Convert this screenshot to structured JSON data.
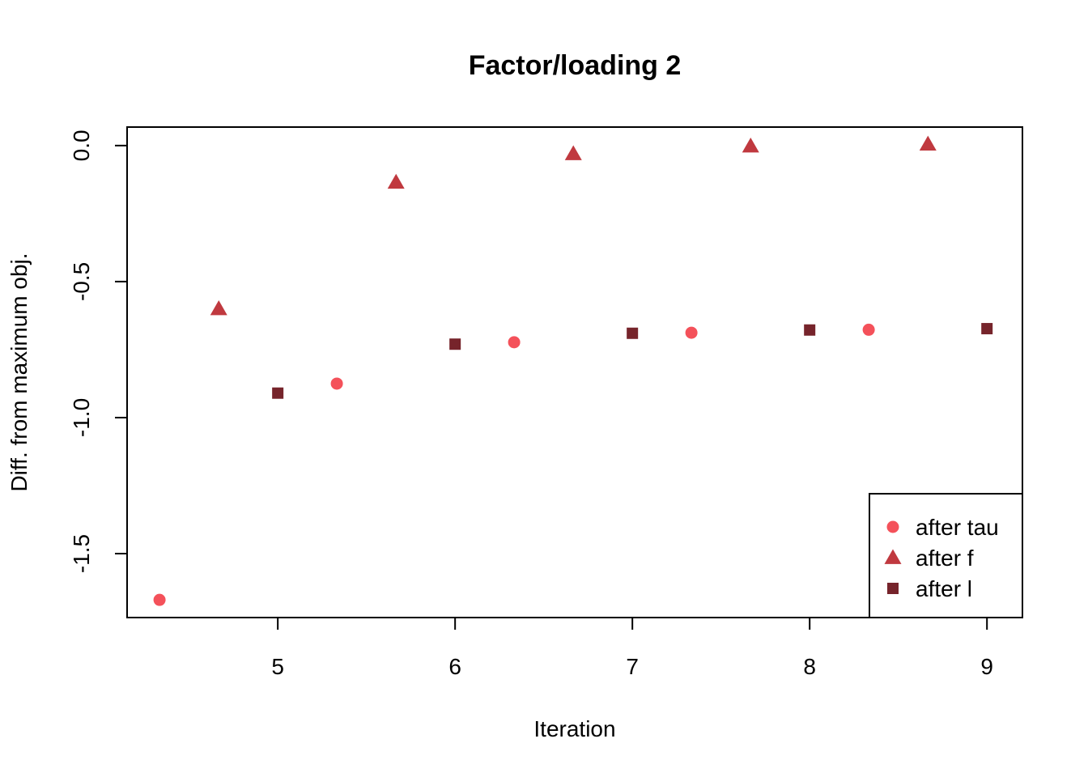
{
  "chart_data": {
    "type": "scatter",
    "title": "Factor/loading 2",
    "xlabel": "Iteration",
    "ylabel": "Diff. from maximum obj.",
    "xlim": [
      4.15,
      9.2
    ],
    "ylim": [
      -1.735,
      0.068
    ],
    "xticks": [
      5,
      6,
      7,
      8,
      9
    ],
    "xtick_labels": [
      "5",
      "6",
      "7",
      "8",
      "9"
    ],
    "yticks": [
      0.0,
      -0.5,
      -1.0,
      -1.5
    ],
    "ytick_labels": [
      "0.0",
      "-0.5",
      "-1.0",
      "-1.5"
    ],
    "grid": false,
    "legend_position": "bottom-right",
    "series": [
      {
        "name": "after tau",
        "marker": "circle",
        "color": "#f4515a",
        "points": [
          {
            "x": 4.333,
            "y": -1.67
          },
          {
            "x": 5.333,
            "y": -0.875
          },
          {
            "x": 6.333,
            "y": -0.723
          },
          {
            "x": 7.333,
            "y": -0.688
          },
          {
            "x": 8.333,
            "y": -0.677
          }
        ]
      },
      {
        "name": "after f",
        "marker": "triangle",
        "color": "#c0393f",
        "points": [
          {
            "x": 4.667,
            "y": -0.6
          },
          {
            "x": 5.667,
            "y": -0.135
          },
          {
            "x": 6.667,
            "y": -0.03
          },
          {
            "x": 7.667,
            "y": -0.002
          },
          {
            "x": 8.667,
            "y": 0.005
          }
        ]
      },
      {
        "name": "after l",
        "marker": "square",
        "color": "#76242b",
        "points": [
          {
            "x": 5.0,
            "y": -0.91
          },
          {
            "x": 6.0,
            "y": -0.73
          },
          {
            "x": 7.0,
            "y": -0.69
          },
          {
            "x": 8.0,
            "y": -0.678
          },
          {
            "x": 9.0,
            "y": -0.673
          }
        ]
      }
    ]
  }
}
